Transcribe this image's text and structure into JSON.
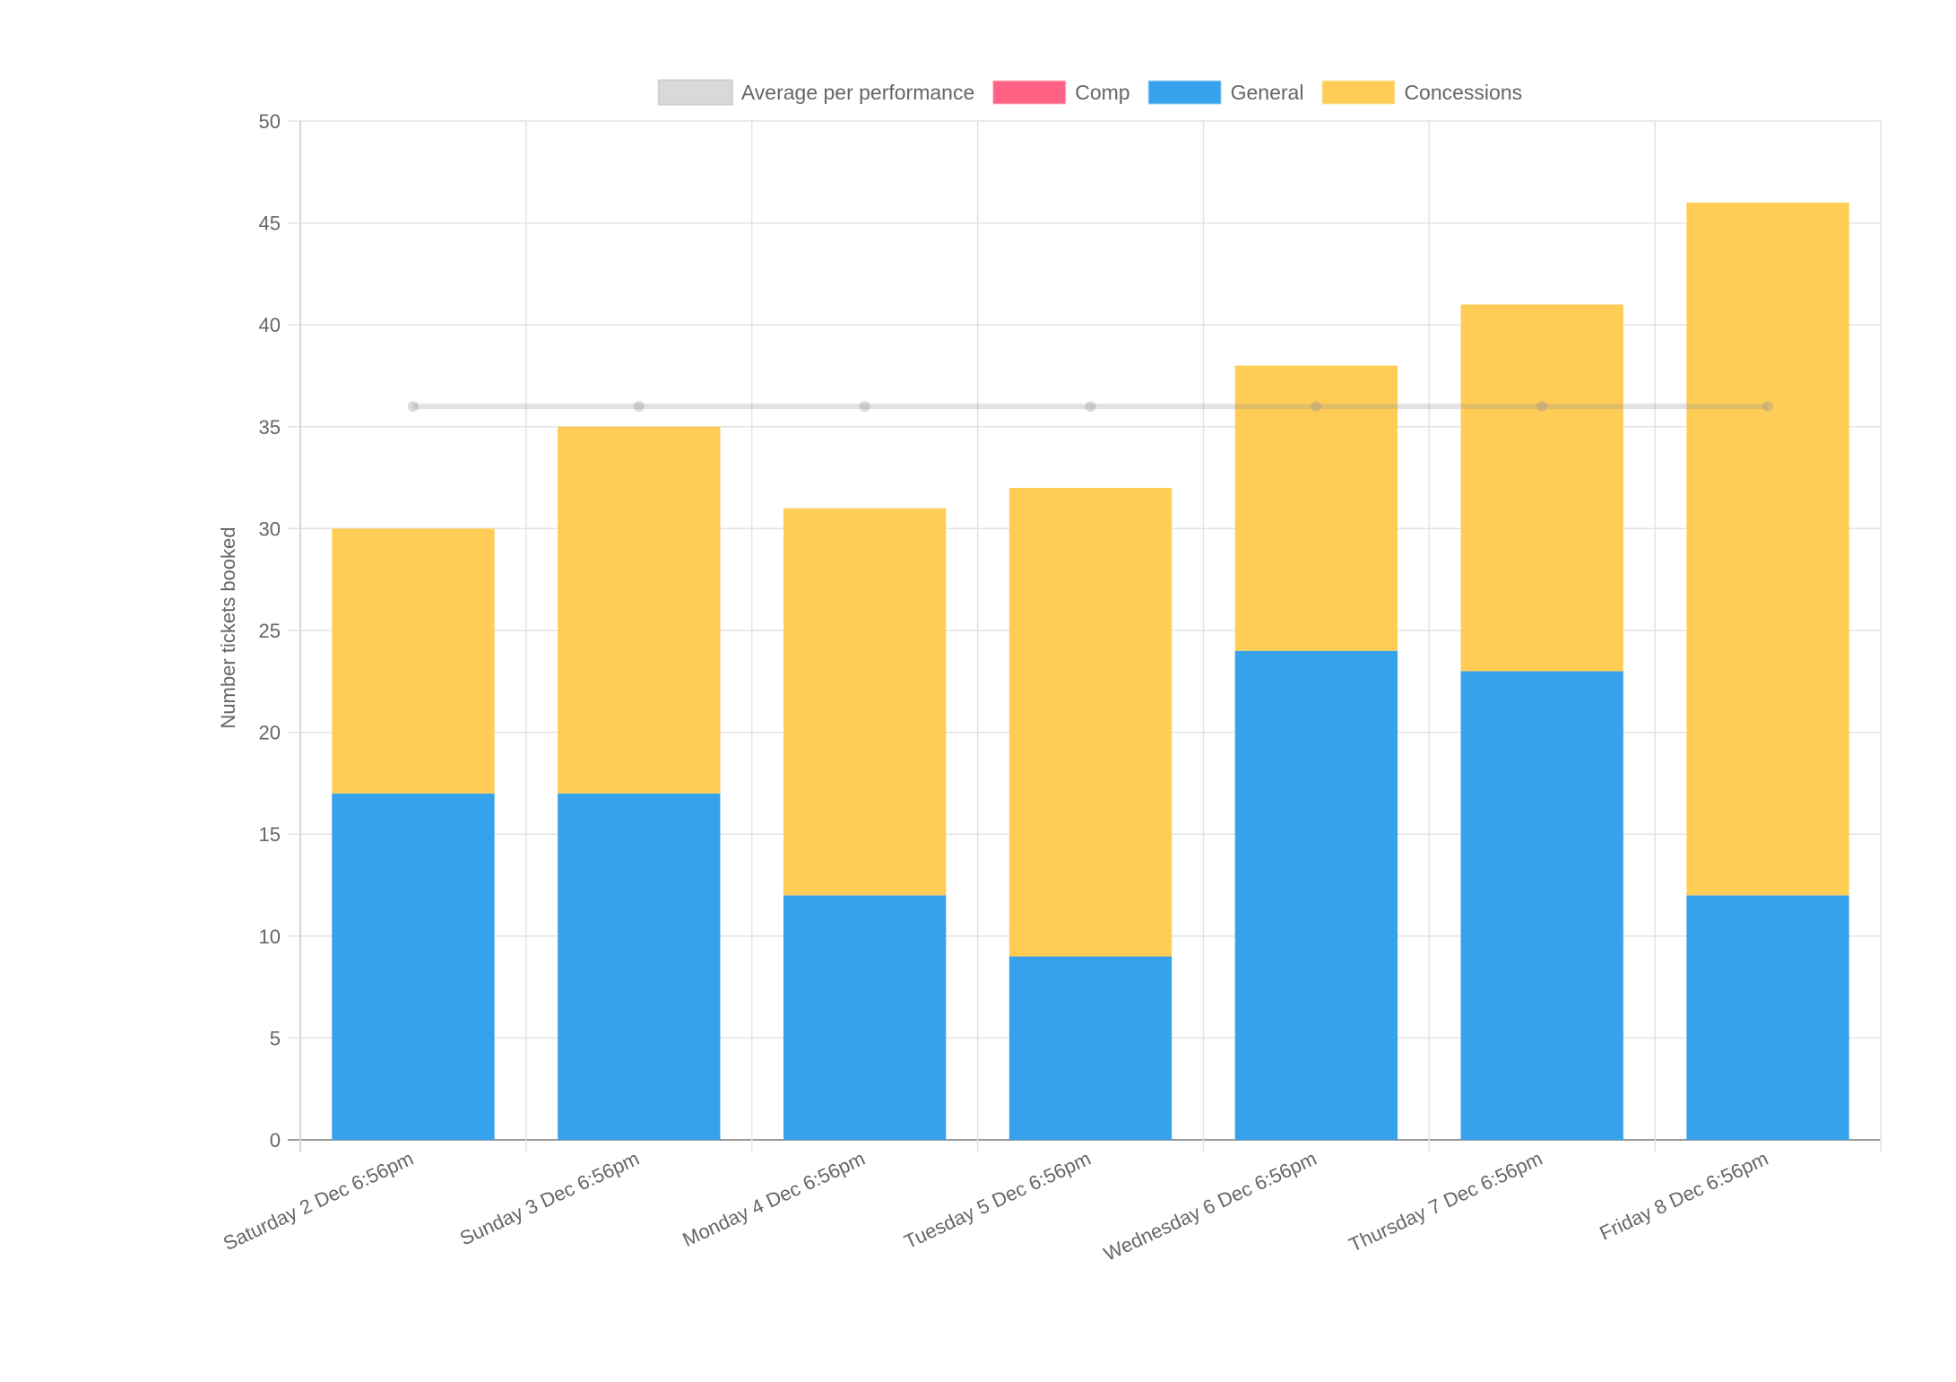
{
  "chart_data": {
    "type": "bar",
    "stacked": true,
    "categories": [
      "Saturday  2 Dec  6:56pm",
      "Sunday  3 Dec  6:56pm",
      "Monday  4 Dec  6:56pm",
      "Tuesday  5 Dec  6:56pm",
      "Wednesday  6 Dec  6:56pm",
      "Thursday  7 Dec  6:56pm",
      "Friday  8 Dec  6:56pm"
    ],
    "series": [
      {
        "name": "Average per performance",
        "type": "line",
        "color": "#d9d9d9",
        "values": [
          36,
          36,
          36,
          36,
          36,
          36,
          36
        ]
      },
      {
        "name": "Comp",
        "type": "bar",
        "color": "#ff6384",
        "values": [
          0,
          0,
          0,
          0,
          0,
          0,
          0
        ]
      },
      {
        "name": "General",
        "type": "bar",
        "color": "#36a2eb",
        "values": [
          17,
          17,
          12,
          9,
          24,
          23,
          12
        ]
      },
      {
        "name": "Concessions",
        "type": "bar",
        "color": "#ffcd56",
        "values": [
          13,
          18,
          19,
          23,
          14,
          18,
          34
        ]
      }
    ],
    "ylabel": "Number tickets booked",
    "xlabel": "",
    "ylim": [
      0,
      50
    ],
    "yticks": [
      "0",
      "5",
      "10",
      "15",
      "20",
      "25",
      "30",
      "35",
      "40",
      "45",
      "50"
    ],
    "legend_position": "top",
    "grid": true
  }
}
